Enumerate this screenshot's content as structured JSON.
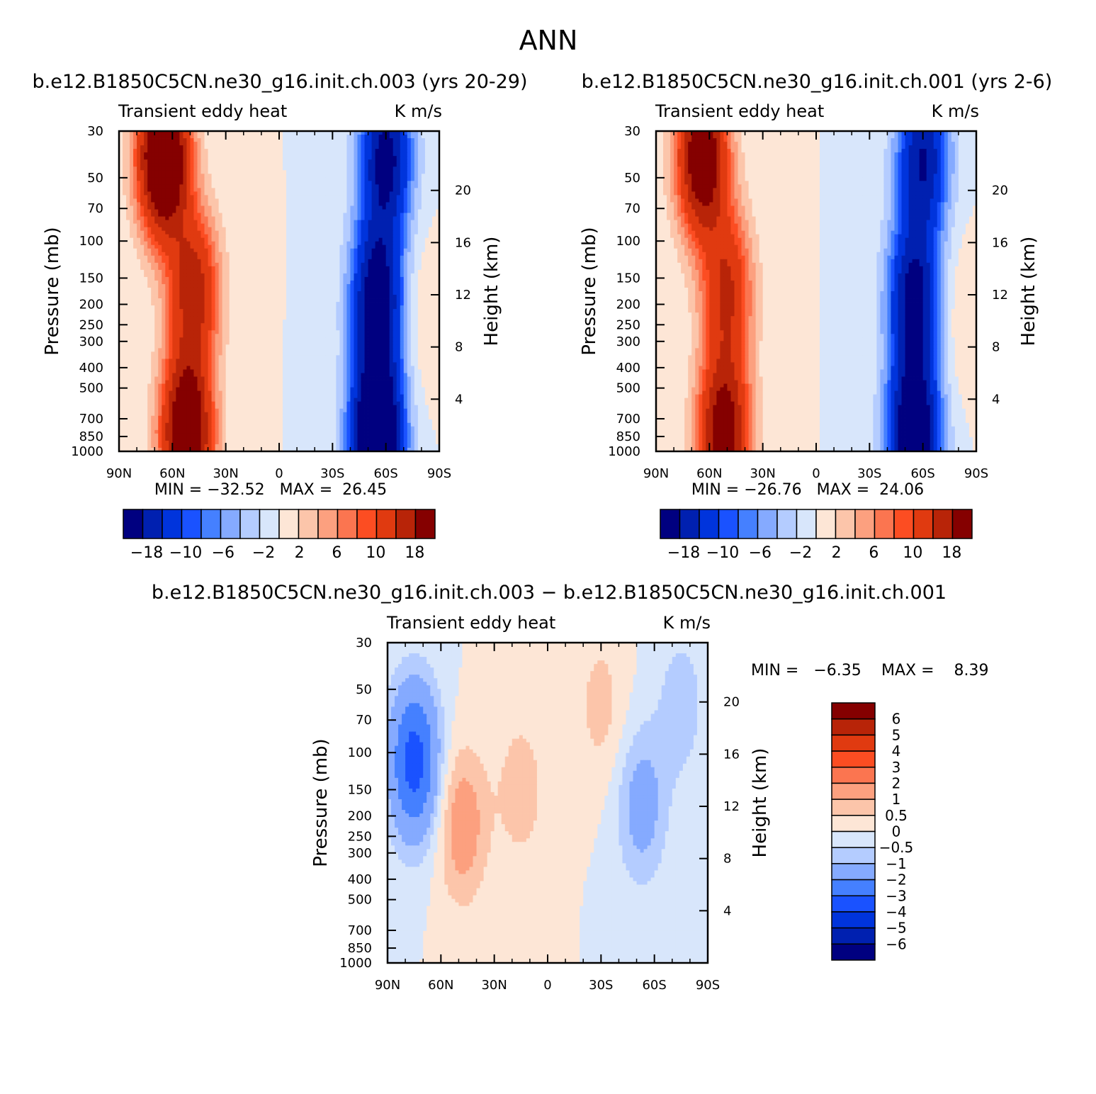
{
  "figure": {
    "title": "ANN"
  },
  "chart_data": [
    {
      "type": "contour",
      "title": "b.e12.B1850C5CN.ne30_g16.init.ch.003 (yrs 20-29)",
      "left_label": "Transient eddy heat",
      "right_label": "K m/s",
      "xlabel": "",
      "ylabel": "Pressure (mb)",
      "ylabel_right": "Height (km)",
      "x_ticks": [
        "90N",
        "60N",
        "30N",
        "0",
        "30S",
        "60S",
        "90S"
      ],
      "y_ticks": [
        "30",
        "50",
        "70",
        "100",
        "150",
        "200",
        "250",
        "300",
        "400",
        "500",
        "700",
        "850",
        "1000"
      ],
      "y_ticks_values": [
        30,
        50,
        70,
        100,
        150,
        200,
        250,
        300,
        400,
        500,
        700,
        850,
        1000
      ],
      "height_ticks": [
        "20",
        "16",
        "12",
        "8",
        "4"
      ],
      "height_ticks_values": [
        20,
        16,
        12,
        8,
        4
      ],
      "stats": "MIN = −32.52   MAX =  26.45",
      "min": -32.52,
      "max": 26.45,
      "colorbar_labels": [
        "−18",
        "−10",
        "−6",
        "−2",
        "2",
        "6",
        "10",
        "18"
      ],
      "levels": [
        -18,
        -14,
        -10,
        -8,
        -6,
        -4,
        -2,
        0,
        2,
        4,
        6,
        8,
        10,
        14,
        18
      ],
      "features": [
        {
          "lat": 65,
          "p": 40,
          "sign": 1,
          "amp": 30
        },
        {
          "lat": 48,
          "p": 170,
          "sign": 1,
          "amp": 16
        },
        {
          "lat": 52,
          "p": 820,
          "sign": 1,
          "amp": 26
        },
        {
          "lat": -60,
          "p": 40,
          "sign": -1,
          "amp": 20
        },
        {
          "lat": -55,
          "p": 190,
          "sign": -1,
          "amp": 22
        },
        {
          "lat": -55,
          "p": 860,
          "sign": -1,
          "amp": 32
        },
        {
          "lat": -80,
          "p": 230,
          "sign": 1,
          "amp": 2
        }
      ]
    },
    {
      "type": "contour",
      "title": "b.e12.B1850C5CN.ne30_g16.init.ch.001 (yrs 2-6)",
      "left_label": "Transient eddy heat",
      "right_label": "K m/s",
      "xlabel": "",
      "ylabel": "Pressure (mb)",
      "ylabel_right": "Height (km)",
      "x_ticks": [
        "90N",
        "60N",
        "30N",
        "0",
        "30S",
        "60S",
        "90S"
      ],
      "y_ticks": [
        "30",
        "50",
        "70",
        "100",
        "150",
        "200",
        "250",
        "300",
        "400",
        "500",
        "700",
        "850",
        "1000"
      ],
      "y_ticks_values": [
        30,
        50,
        70,
        100,
        150,
        200,
        250,
        300,
        400,
        500,
        700,
        850,
        1000
      ],
      "height_ticks": [
        "20",
        "16",
        "12",
        "8",
        "4"
      ],
      "height_ticks_values": [
        20,
        16,
        12,
        8,
        4
      ],
      "stats": "MIN = −26.76   MAX =  24.06",
      "min": -26.76,
      "max": 24.06,
      "colorbar_labels": [
        "−18",
        "−10",
        "−6",
        "−2",
        "2",
        "6",
        "10",
        "18"
      ],
      "levels": [
        -18,
        -14,
        -10,
        -8,
        -6,
        -4,
        -2,
        0,
        2,
        4,
        6,
        8,
        10,
        14,
        18
      ],
      "features": [
        {
          "lat": 64,
          "p": 40,
          "sign": 1,
          "amp": 24
        },
        {
          "lat": 50,
          "p": 170,
          "sign": 1,
          "amp": 14
        },
        {
          "lat": 52,
          "p": 820,
          "sign": 1,
          "amp": 22
        },
        {
          "lat": -60,
          "p": 40,
          "sign": -1,
          "amp": 18
        },
        {
          "lat": -55,
          "p": 190,
          "sign": -1,
          "amp": 20
        },
        {
          "lat": -55,
          "p": 860,
          "sign": -1,
          "amp": 26
        },
        {
          "lat": -80,
          "p": 230,
          "sign": 1,
          "amp": 2
        }
      ]
    },
    {
      "type": "contour",
      "title": "b.e12.B1850C5CN.ne30_g16.init.ch.003 − b.e12.B1850C5CN.ne30_g16.init.ch.001",
      "left_label": "Transient eddy heat",
      "right_label": "K m/s",
      "xlabel": "",
      "ylabel": "Pressure (mb)",
      "ylabel_right": "Height (km)",
      "x_ticks": [
        "90N",
        "60N",
        "30N",
        "0",
        "30S",
        "60S",
        "90S"
      ],
      "y_ticks": [
        "30",
        "50",
        "70",
        "100",
        "150",
        "200",
        "250",
        "300",
        "400",
        "500",
        "700",
        "850",
        "1000"
      ],
      "y_ticks_values": [
        30,
        50,
        70,
        100,
        150,
        200,
        250,
        300,
        400,
        500,
        700,
        850,
        1000
      ],
      "height_ticks": [
        "20",
        "16",
        "12",
        "8",
        "4"
      ],
      "height_ticks_values": [
        20,
        16,
        12,
        8,
        4
      ],
      "stats_min": "MIN =   −6.35",
      "stats_max": "MAX =    8.39",
      "min": -6.35,
      "max": 8.39,
      "colorbar_labels": [
        "6",
        "5",
        "4",
        "3",
        "2",
        "1",
        "0.5",
        "0",
        "−0.5",
        "−1",
        "−2",
        "−3",
        "−4",
        "−5",
        "−6"
      ],
      "levels": [
        -6,
        -5,
        -4,
        -3,
        -2,
        -1,
        -0.5,
        0,
        0.5,
        1,
        2,
        3,
        4,
        5,
        6
      ],
      "features": [
        {
          "lat": 75,
          "p": 110,
          "sign": -1,
          "amp": 3.5
        },
        {
          "lat": 48,
          "p": 220,
          "sign": 1,
          "amp": 1.5
        },
        {
          "lat": 15,
          "p": 150,
          "sign": 1,
          "amp": 0.8
        },
        {
          "lat": -30,
          "p": 60,
          "sign": 1,
          "amp": 0.7
        },
        {
          "lat": -53,
          "p": 180,
          "sign": -1,
          "amp": 1.4
        },
        {
          "lat": -75,
          "p": 60,
          "sign": -1,
          "amp": 0.8
        }
      ]
    }
  ],
  "palette": [
    "#000080",
    "#0020b0",
    "#0034dc",
    "#1a52ff",
    "#4580ff",
    "#85aaff",
    "#b4ccff",
    "#d8e6fb",
    "#fde6d6",
    "#fcc5aa",
    "#fca07f",
    "#fb7550",
    "#fc4d22",
    "#e03a10",
    "#b82408",
    "#850000"
  ]
}
